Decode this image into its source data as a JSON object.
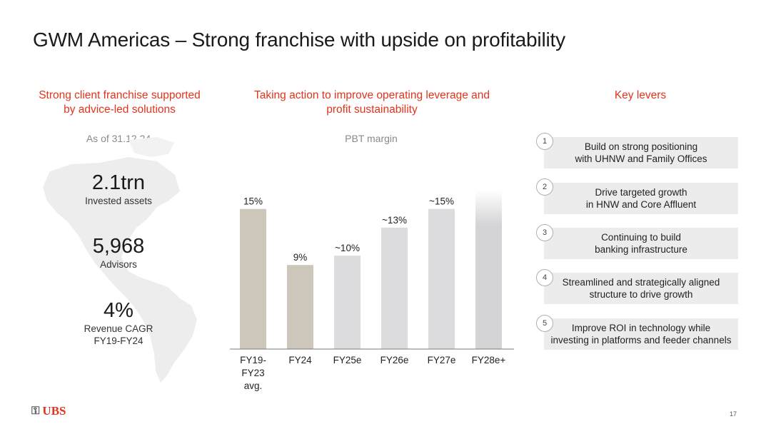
{
  "title": "GWM Americas – Strong franchise with upside on profitability",
  "left": {
    "header": [
      "Strong client franchise supported",
      "by advice-led solutions"
    ],
    "as_of": "As of 31.12.24",
    "kpis": [
      {
        "value": "2.1trn",
        "label": [
          "Invested assets"
        ]
      },
      {
        "value": "5,968",
        "label": [
          "Advisors"
        ]
      },
      {
        "value": "4%",
        "label": [
          "Revenue CAGR",
          "FY19-FY24"
        ]
      }
    ]
  },
  "middle": {
    "header": [
      "Taking action to improve operating leverage and",
      "profit sustainability"
    ],
    "subheader": "PBT margin"
  },
  "chart_data": {
    "type": "bar",
    "title": "PBT margin",
    "categories": [
      "FY19-FY23 avg.",
      "FY24",
      "FY25e",
      "FY26e",
      "FY27e",
      "FY28e+"
    ],
    "category_lines": [
      [
        "FY19-",
        "FY23",
        "avg."
      ],
      [
        "FY24"
      ],
      [
        "FY25e"
      ],
      [
        "FY26e"
      ],
      [
        "FY27e"
      ],
      [
        "FY28e+"
      ]
    ],
    "values": [
      15,
      9,
      10,
      13,
      15,
      17
    ],
    "labels": [
      "15%",
      "9%",
      "~10%",
      "~13%",
      "~15%",
      ""
    ],
    "styles": [
      "actual",
      "actual",
      "estimate",
      "estimate",
      "estimate",
      "fade"
    ],
    "colors": {
      "actual": "#cdc7bb",
      "estimate": "#dcdbdd",
      "fade": "#d2d2d4"
    },
    "ylim": [
      0,
      17.5
    ],
    "xlabel": "",
    "ylabel": ""
  },
  "right": {
    "header": "Key levers",
    "levers": [
      {
        "num": "1",
        "text": [
          "Build on strong positioning",
          "with UHNW and Family Offices"
        ]
      },
      {
        "num": "2",
        "text": [
          "Drive targeted growth",
          "in HNW and Core Affluent"
        ]
      },
      {
        "num": "3",
        "text": [
          "Continuing to build",
          "banking infrastructure"
        ]
      },
      {
        "num": "4",
        "text": [
          "Streamlined and strategically aligned",
          "structure to drive growth"
        ]
      },
      {
        "num": "5",
        "text": [
          "Improve ROI in technology while",
          "investing in platforms and feeder channels"
        ]
      }
    ]
  },
  "footer": {
    "logo": "UBS",
    "page": "17"
  },
  "colors": {
    "accent": "#e0341c",
    "lever_bg": "#ececec"
  }
}
